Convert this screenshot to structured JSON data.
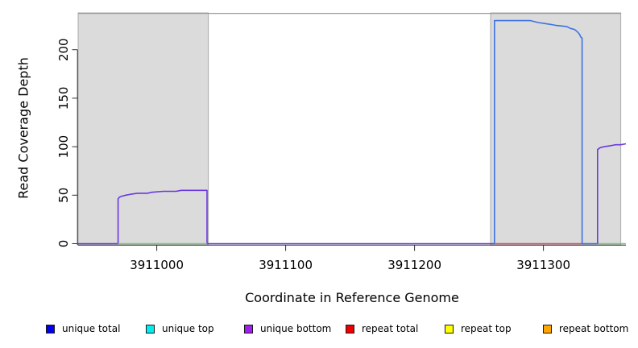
{
  "chart_data": {
    "type": "line",
    "title": "",
    "xlabel": "Coordinate in Reference Genome",
    "ylabel": "Read Coverage Depth",
    "xlim": [
      3910939,
      3911364
    ],
    "ylim": [
      0,
      238
    ],
    "grid": false,
    "legend_position": "bottom",
    "x_ticks": [
      {
        "v": 3911000,
        "label": "3911000"
      },
      {
        "v": 3911100,
        "label": "3911100"
      },
      {
        "v": 3911200,
        "label": "3911200"
      },
      {
        "v": 3911300,
        "label": "3911300"
      }
    ],
    "y_ticks": [
      {
        "v": 0,
        "label": "0"
      },
      {
        "v": 50,
        "label": "50"
      },
      {
        "v": 100,
        "label": "100"
      },
      {
        "v": 150,
        "label": "150"
      },
      {
        "v": 200,
        "label": "200"
      }
    ],
    "shaded_regions": [
      [
        3910939,
        3911040
      ],
      [
        3911259,
        3911360
      ]
    ],
    "shaded_fill": "#DBDBDB",
    "shaded_border": "#ABABAB",
    "frame_line_color": "#9A9A9A",
    "axis_color": "#303030",
    "series": [
      {
        "id": "unique-bottom-left",
        "legend": "unique bottom",
        "color": "#6B38E0",
        "points": [
          [
            3910939,
            0
          ],
          [
            3910970,
            0
          ],
          [
            3910970,
            46
          ],
          [
            3910971,
            48
          ],
          [
            3910973,
            49
          ],
          [
            3910976,
            50
          ],
          [
            3910980,
            51
          ],
          [
            3910985,
            52
          ],
          [
            3910993,
            52
          ],
          [
            3910996,
            53
          ],
          [
            3911005,
            54
          ],
          [
            3911015,
            54
          ],
          [
            3911019,
            55
          ],
          [
            3911039,
            55
          ],
          [
            3911039,
            0
          ],
          [
            3911262,
            0
          ]
        ]
      },
      {
        "id": "zero-overlap-left",
        "legend": "",
        "color": "#79C879",
        "points": [
          [
            3910970,
            0
          ],
          [
            3911039,
            0
          ]
        ]
      },
      {
        "id": "repeat-total-zero",
        "legend": "repeat total",
        "color": "#DE4E66",
        "points": [
          [
            3911262,
            0
          ],
          [
            3911330,
            0
          ]
        ]
      },
      {
        "id": "unique-total-peak",
        "legend": "unique total",
        "color": "#3C72E4",
        "points": [
          [
            3911262,
            0
          ],
          [
            3911262,
            230
          ],
          [
            3911290,
            230
          ],
          [
            3911296,
            228
          ],
          [
            3911301,
            227
          ],
          [
            3911306,
            226
          ],
          [
            3911310,
            225
          ],
          [
            3911318,
            224
          ],
          [
            3911321,
            222
          ],
          [
            3911324,
            221
          ],
          [
            3911326,
            219
          ],
          [
            3911328,
            216
          ],
          [
            3911329,
            213
          ],
          [
            3911330,
            212
          ],
          [
            3911330,
            0
          ],
          [
            3911342,
            0
          ]
        ]
      },
      {
        "id": "zero-overlap-right",
        "legend": "",
        "color": "#79C879",
        "points": [
          [
            3911342,
            0
          ],
          [
            3911364,
            0
          ]
        ]
      },
      {
        "id": "unique-bottom-right",
        "legend": "unique bottom",
        "color": "#6B38E0",
        "points": [
          [
            3911342,
            0
          ],
          [
            3911342,
            97
          ],
          [
            3911344,
            99
          ],
          [
            3911347,
            100
          ],
          [
            3911352,
            101
          ],
          [
            3911356,
            102
          ],
          [
            3911360,
            102
          ],
          [
            3911364,
            103
          ]
        ]
      }
    ]
  },
  "legend": {
    "items": [
      {
        "label": "unique total",
        "color": "#0000EE"
      },
      {
        "label": "unique top",
        "color": "#00EEEE"
      },
      {
        "label": "unique bottom",
        "color": "#A020F0"
      },
      {
        "label": "repeat total",
        "color": "#EE0000"
      },
      {
        "label": "repeat top",
        "color": "#FFFF00"
      },
      {
        "label": "repeat bottom",
        "color": "#FFA500"
      }
    ]
  }
}
